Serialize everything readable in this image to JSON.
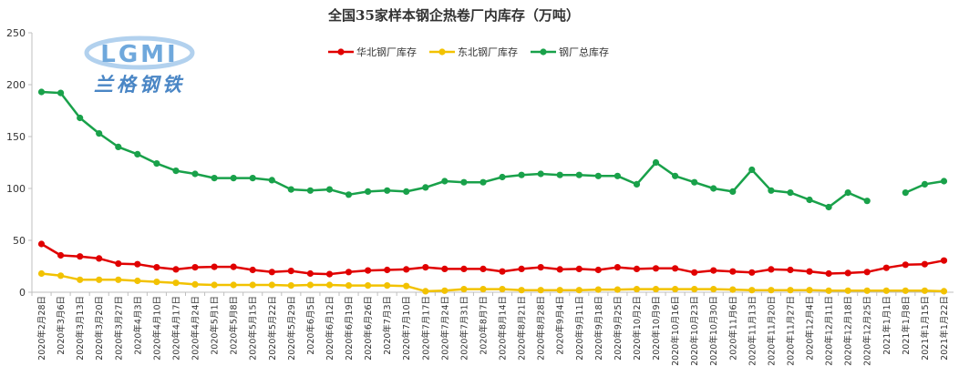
{
  "chart_data": {
    "type": "line",
    "title": "全国35家样本钢企热卷厂内库存（万吨）",
    "xlabel": "",
    "ylabel": "",
    "ylim": [
      0,
      250
    ],
    "yticks": [
      0,
      50,
      100,
      150,
      200,
      250
    ],
    "grid": false,
    "legend_position": "top-center",
    "categories": [
      "2020年2月28日",
      "2020年3月6日",
      "2020年3月13日",
      "2020年3月20日",
      "2020年3月27日",
      "2020年4月3日",
      "2020年4月10日",
      "2020年4月17日",
      "2020年4月24日",
      "2020年5月1日",
      "2020年5月8日",
      "2020年5月15日",
      "2020年5月22日",
      "2020年5月29日",
      "2020年6月5日",
      "2020年6月12日",
      "2020年6月19日",
      "2020年6月26日",
      "2020年7月3日",
      "2020年7月10日",
      "2020年7月17日",
      "2020年7月24日",
      "2020年7月31日",
      "2020年8月7日",
      "2020年8月14日",
      "2020年8月21日",
      "2020年8月28日",
      "2020年9月4日",
      "2020年9月11日",
      "2020年9月18日",
      "2020年9月25日",
      "2020年10月2日",
      "2020年10月9日",
      "2020年10月16日",
      "2020年10月23日",
      "2020年10月30日",
      "2020年11月6日",
      "2020年11月13日",
      "2020年11月20日",
      "2020年11月27日",
      "2020年12月4日",
      "2020年12月11日",
      "2020年12月18日",
      "2020年12月25日",
      "2021年1月1日",
      "2021年1月8日",
      "2021年1月15日",
      "2021年1月22日"
    ],
    "series": [
      {
        "name": "华北钢厂库存",
        "color": "#e00000",
        "values": [
          46.5,
          35.5,
          34.5,
          32.5,
          27.5,
          27,
          24,
          22,
          24,
          24.5,
          24.5,
          21.5,
          19.5,
          20.5,
          18,
          17.5,
          19.5,
          21,
          21.5,
          22,
          24,
          22.5,
          22.5,
          22.5,
          20,
          22.5,
          24,
          22,
          22.5,
          21.5,
          24,
          22.5,
          23,
          23,
          19,
          21,
          20,
          19,
          22,
          21.5,
          20,
          18,
          18.5,
          19.5,
          23.5,
          26.5,
          27,
          30.5
        ]
      },
      {
        "name": "东北钢厂库存",
        "color": "#f2c200",
        "values": [
          18,
          16,
          12,
          12,
          12,
          11,
          10,
          9,
          7.5,
          7,
          7,
          7,
          7,
          6.5,
          7,
          7,
          6.5,
          6.5,
          6.5,
          6,
          1,
          1.5,
          3,
          3,
          3,
          2,
          2,
          2,
          2,
          2.5,
          2.5,
          3,
          3,
          3,
          3,
          3,
          2.5,
          2,
          2,
          2,
          2,
          1.5,
          1.5,
          1.5,
          1.5,
          1.5,
          1.5,
          1
        ]
      },
      {
        "name": "钢厂总库存",
        "color": "#19a14a",
        "values": [
          193,
          192,
          168,
          153,
          140,
          133,
          124,
          117,
          114,
          110,
          110,
          110,
          108,
          99,
          98,
          99,
          94,
          97,
          98,
          97,
          101,
          107,
          106,
          106,
          111,
          113,
          114,
          113,
          113,
          112,
          112,
          104,
          125,
          112,
          106,
          100,
          97,
          118,
          98,
          96,
          89,
          82,
          96,
          88,
          null,
          96,
          104,
          107
        ]
      }
    ]
  },
  "logo": {
    "latin": "LGMI",
    "chinese": "兰格钢铁"
  }
}
